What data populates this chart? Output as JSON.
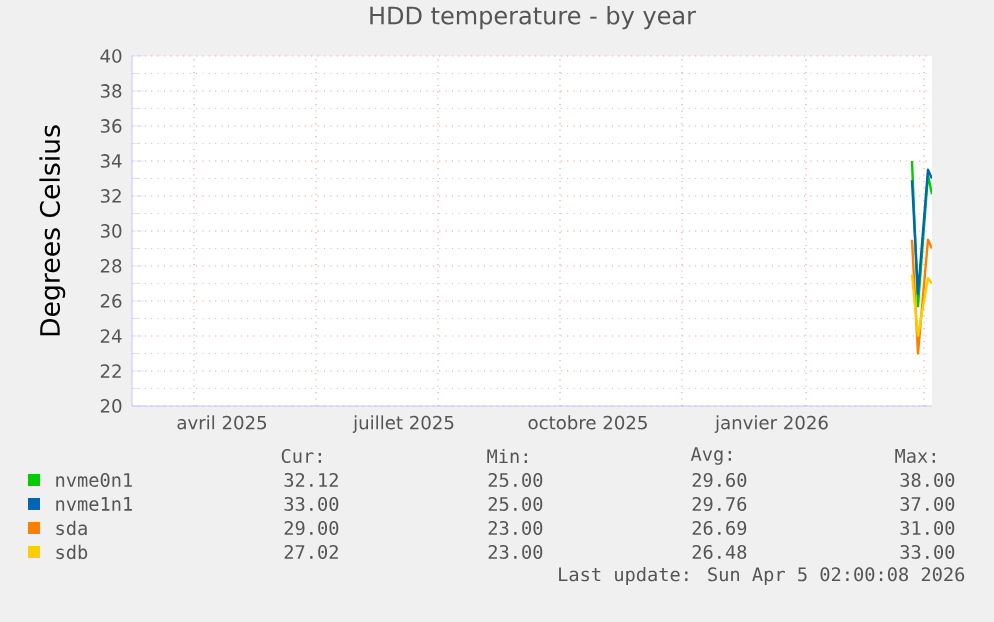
{
  "chart_data": {
    "type": "line",
    "title": "HDD temperature - by year",
    "ylabel": "Degrees Celsius",
    "xlim": [
      "2025-03-01",
      "2026-04-05"
    ],
    "ylim": [
      20,
      40
    ],
    "yticks": [
      20,
      22,
      24,
      26,
      28,
      30,
      32,
      34,
      36,
      38,
      40
    ],
    "xticks": [
      {
        "value": "2025-04-15",
        "label": "avril 2025"
      },
      {
        "value": "2025-07-15",
        "label": "juillet 2025"
      },
      {
        "value": "2025-10-15",
        "label": "octobre 2025"
      },
      {
        "value": "2026-01-15",
        "label": "janvier 2026"
      },
      {
        "value": "2025-04-01",
        "label": null
      },
      {
        "value": "2025-06-01",
        "label": null
      },
      {
        "value": "2025-08-01",
        "label": null
      },
      {
        "value": "2025-10-01",
        "label": null
      },
      {
        "value": "2025-12-01",
        "label": null
      },
      {
        "value": "2026-02-01",
        "label": null
      },
      {
        "value": "2026-04-01",
        "label": null
      }
    ],
    "grid": true,
    "legend": "bottom",
    "marker": "none",
    "line_style": "solid",
    "series": [
      {
        "name": "nvme0n1",
        "color": "#00cc00",
        "x": [
          "2026-03-26",
          "2026-03-29",
          "2026-04-03",
          "2026-04-05"
        ],
        "values": [
          34,
          25.7,
          33.2,
          32.1
        ]
      },
      {
        "name": "nvme1n1",
        "color": "#0066b3",
        "x": [
          "2026-03-26",
          "2026-03-29",
          "2026-04-03",
          "2026-04-05"
        ],
        "values": [
          32.9,
          26.4,
          33.5,
          33
        ]
      },
      {
        "name": "sda",
        "color": "#ff8000",
        "x": [
          "2026-03-26",
          "2026-03-29",
          "2026-04-03",
          "2026-04-05"
        ],
        "values": [
          29.5,
          23,
          29.5,
          29
        ]
      },
      {
        "name": "sdb",
        "color": "#ffcc00",
        "x": [
          "2026-03-26",
          "2026-03-29",
          "2026-04-03",
          "2026-04-05"
        ],
        "values": [
          27.5,
          24,
          27.3,
          27
        ]
      }
    ],
    "annotations": [
      "Cur:",
      "Min:",
      "Avg:",
      "Max:",
      "32.12",
      "25.00",
      "29.60",
      "38.00",
      "33.00",
      "25.00",
      "29.76",
      "37.00",
      "29.00",
      "23.00",
      "26.69",
      "31.00",
      "27.02",
      "23.00",
      "26.48",
      "33.00",
      "Last update: Sun Apr  5 02:00:08 2026"
    ]
  }
}
